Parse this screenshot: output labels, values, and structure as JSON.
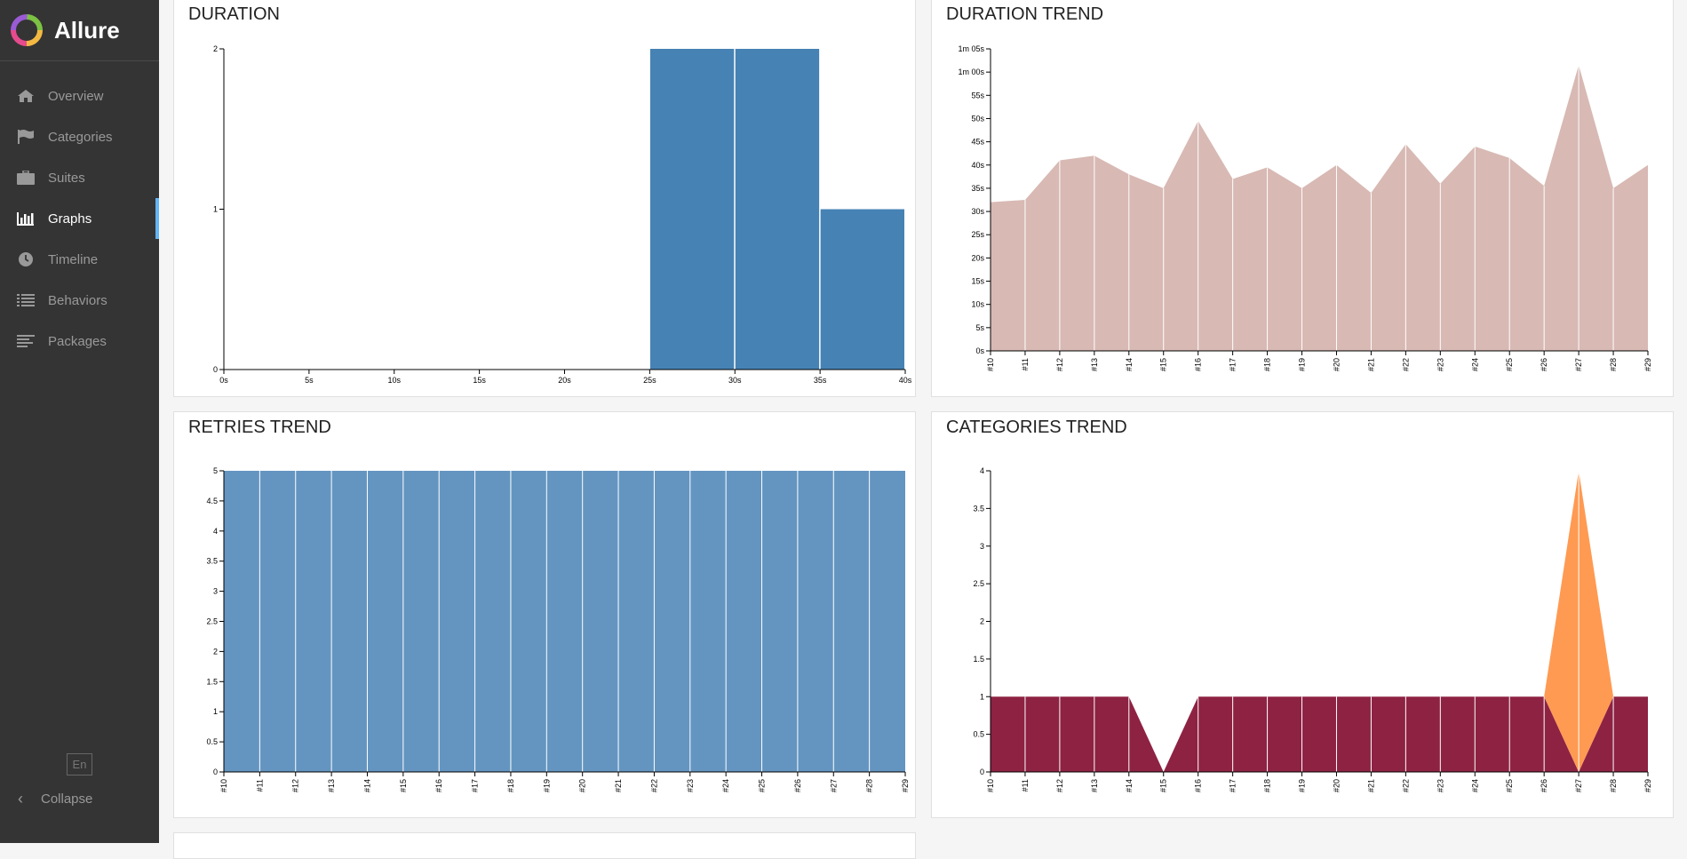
{
  "app": {
    "name": "Allure"
  },
  "sidebar": {
    "items": [
      {
        "label": "Overview",
        "icon": "home-icon"
      },
      {
        "label": "Categories",
        "icon": "flag-icon"
      },
      {
        "label": "Suites",
        "icon": "briefcase-icon"
      },
      {
        "label": "Graphs",
        "icon": "bar-chart-icon",
        "active": true
      },
      {
        "label": "Timeline",
        "icon": "clock-icon"
      },
      {
        "label": "Behaviors",
        "icon": "list-icon"
      },
      {
        "label": "Packages",
        "icon": "align-left-icon"
      }
    ],
    "language": "En",
    "collapse_label": "Collapse"
  },
  "colors": {
    "sidebar_bg": "#343434",
    "accent": "#64b5f6",
    "duration": "#4682b4",
    "duration_trend": "#d8b9b4",
    "retries": "#6495c1",
    "categories_a": "#8e2243",
    "categories_b": "#ff9a52"
  },
  "panels": {
    "duration": {
      "title": "DURATION"
    },
    "duration_trend": {
      "title": "DURATION TREND"
    },
    "retries_trend": {
      "title": "RETRIES TREND"
    },
    "categories_trend": {
      "title": "CATEGORIES TREND"
    }
  },
  "chart_data": [
    {
      "id": "duration",
      "type": "bar",
      "title": "DURATION",
      "x_ticks": [
        "0s",
        "5s",
        "10s",
        "15s",
        "20s",
        "25s",
        "30s",
        "35s",
        "40s"
      ],
      "y_ticks": [
        "0",
        "1",
        "2"
      ],
      "ylim": [
        0,
        2
      ],
      "xlim": [
        0,
        40
      ],
      "bins": [
        {
          "from": 25,
          "to": 30,
          "value": 2
        },
        {
          "from": 30,
          "to": 35,
          "value": 2
        },
        {
          "from": 35,
          "to": 40,
          "value": 1
        }
      ]
    },
    {
      "id": "duration_trend",
      "type": "area",
      "title": "DURATION TREND",
      "categories": [
        "#10",
        "#11",
        "#12",
        "#13",
        "#14",
        "#15",
        "#16",
        "#17",
        "#18",
        "#19",
        "#20",
        "#21",
        "#22",
        "#23",
        "#24",
        "#25",
        "#26",
        "#27",
        "#28",
        "#29"
      ],
      "values": [
        32,
        32.5,
        41,
        42,
        38,
        35,
        49.5,
        37,
        39.5,
        35,
        40,
        34,
        44.5,
        36,
        44,
        41.5,
        35.5,
        61.5,
        35,
        40
      ],
      "y_ticks": [
        "0s",
        "5s",
        "10s",
        "15s",
        "20s",
        "25s",
        "30s",
        "35s",
        "40s",
        "45s",
        "50s",
        "55s",
        "1m 00s",
        "1m 05s"
      ],
      "ylim": [
        0,
        65
      ]
    },
    {
      "id": "retries_trend",
      "type": "area",
      "title": "RETRIES TREND",
      "categories": [
        "#10",
        "#11",
        "#12",
        "#13",
        "#14",
        "#15",
        "#16",
        "#17",
        "#18",
        "#19",
        "#20",
        "#21",
        "#22",
        "#23",
        "#24",
        "#25",
        "#26",
        "#27",
        "#28",
        "#29"
      ],
      "values": [
        5,
        5,
        5,
        5,
        5,
        5,
        5,
        5,
        5,
        5,
        5,
        5,
        5,
        5,
        5,
        5,
        5,
        5,
        5,
        5
      ],
      "y_ticks": [
        "0",
        "0.5",
        "1",
        "1.5",
        "2",
        "2.5",
        "3",
        "3.5",
        "4",
        "4.5",
        "5"
      ],
      "ylim": [
        0,
        5
      ]
    },
    {
      "id": "categories_trend",
      "type": "area",
      "title": "CATEGORIES TREND",
      "categories": [
        "#10",
        "#11",
        "#12",
        "#13",
        "#14",
        "#15",
        "#16",
        "#17",
        "#18",
        "#19",
        "#20",
        "#21",
        "#22",
        "#23",
        "#24",
        "#25",
        "#26",
        "#27",
        "#28",
        "#29"
      ],
      "series": [
        {
          "values": [
            1,
            1,
            1,
            1,
            1,
            0,
            1,
            1,
            1,
            1,
            1,
            1,
            1,
            1,
            1,
            1,
            1,
            0,
            1,
            1
          ]
        },
        {
          "values": [
            0,
            0,
            0,
            0,
            0,
            0,
            0,
            0,
            0,
            0,
            0,
            0,
            0,
            0,
            0,
            0,
            0,
            4,
            0,
            0
          ]
        }
      ],
      "y_ticks": [
        "0",
        "0.5",
        "1",
        "1.5",
        "2",
        "2.5",
        "3",
        "3.5",
        "4"
      ],
      "ylim": [
        0,
        4
      ]
    }
  ]
}
